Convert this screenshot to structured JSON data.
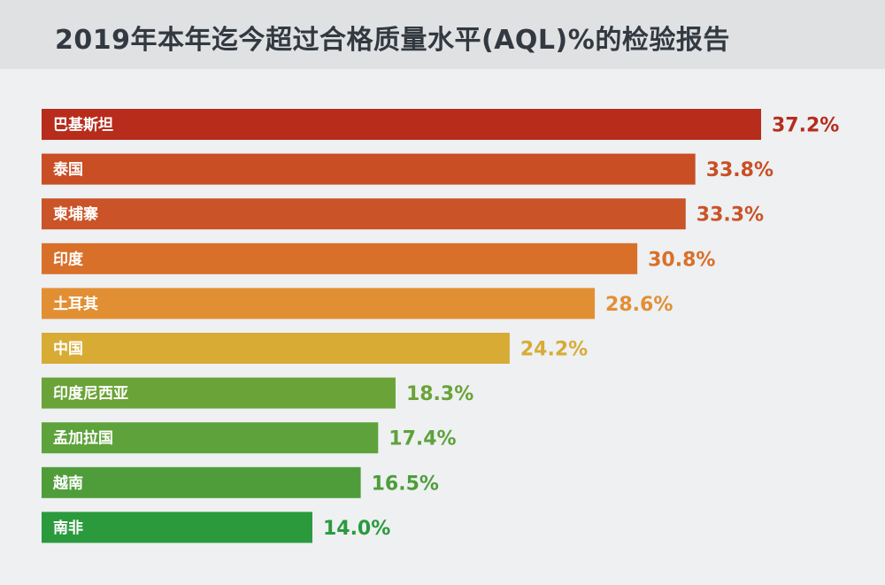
{
  "title": "2019年本年迄今超过合格质量水平(AQL)%的检验报告",
  "chart_data": {
    "type": "bar",
    "orientation": "horizontal",
    "title": "2019年本年迄今超过合格质量水平(AQL)%的检验报告",
    "categories": [
      "巴基斯坦",
      "泰国",
      "柬埔寨",
      "印度",
      "土耳其",
      "中国",
      "印度尼西亚",
      "孟加拉国",
      "越南",
      "南非"
    ],
    "values": [
      37.2,
      33.8,
      33.3,
      30.8,
      28.6,
      24.2,
      18.3,
      17.4,
      16.5,
      14.0
    ],
    "value_labels": [
      "37.2%",
      "33.8%",
      "33.3%",
      "30.8%",
      "28.6%",
      "24.2%",
      "18.3%",
      "17.4%",
      "16.5%",
      "14.0%"
    ],
    "colors": [
      "#b72c1b",
      "#ca4e24",
      "#ca5328",
      "#d9702a",
      "#e28f33",
      "#d8ab35",
      "#6aa337",
      "#5da23a",
      "#4e9d3a",
      "#2a9a3d"
    ],
    "xlabel": "",
    "ylabel": "",
    "xlim": [
      0,
      37.2
    ],
    "grid": false,
    "legend": "none"
  }
}
